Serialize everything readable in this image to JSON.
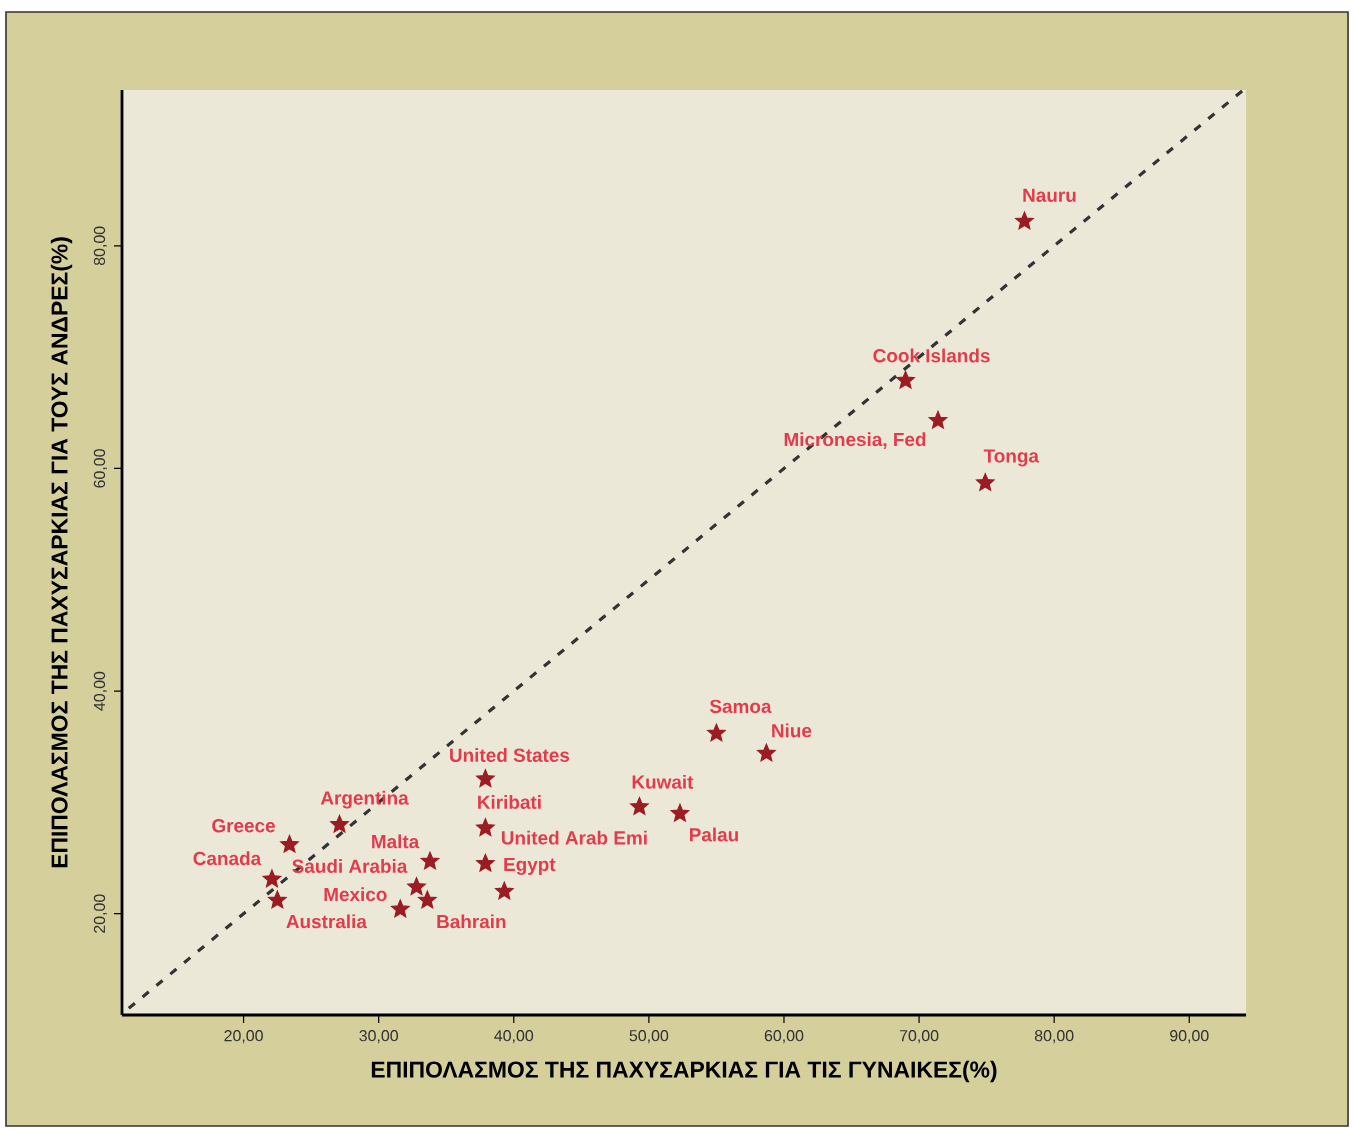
{
  "chart_data": {
    "type": "scatter",
    "xlabel": "ΕΠΙΠΟΛΑΣΜΟΣ ΤΗΣ ΠΑΧΥΣΑΡΚΙΑΣ ΓΙΑ ΤΙΣ ΓΥΝΑΙΚΕΣ(%)",
    "ylabel": "ΕΠΙΠΟΛΑΣΜΟΣ ΤΗΣ ΠΑΧΥΣΑΡΚΙΑΣ ΓΙΑ ΤΟΥΣ ΑΝΔΡΕΣ(%)",
    "xlim": [
      11,
      94.2
    ],
    "ylim": [
      10.9,
      94
    ],
    "xticks": [
      {
        "value": 20,
        "label": "20,00"
      },
      {
        "value": 30,
        "label": "30,00"
      },
      {
        "value": 40,
        "label": "40,00"
      },
      {
        "value": 50,
        "label": "50,00"
      },
      {
        "value": 60,
        "label": "60,00"
      },
      {
        "value": 70,
        "label": "70,00"
      },
      {
        "value": 80,
        "label": "80,00"
      },
      {
        "value": 90,
        "label": "90,00"
      }
    ],
    "yticks": [
      {
        "value": 20,
        "label": "20,00"
      },
      {
        "value": 40,
        "label": "40,00"
      },
      {
        "value": 60,
        "label": "60,00"
      },
      {
        "value": 80,
        "label": "80,00"
      }
    ],
    "series": [
      {
        "marker": "star",
        "color": "#9b1c22",
        "x": [
          77.8,
          69.0,
          71.4,
          74.9,
          55.0,
          58.7,
          37.9,
          49.3,
          52.3,
          37.9,
          37.9,
          39.3,
          27.1,
          23.4,
          22.1,
          22.5,
          33.8,
          32.8,
          31.6,
          33.6
        ],
        "values": [
          82.2,
          67.9,
          64.3,
          58.7,
          36.2,
          34.4,
          32.1,
          29.6,
          29.0,
          27.7,
          24.5,
          22.0,
          28.0,
          26.2,
          23.1,
          21.2,
          24.7,
          22.4,
          20.4,
          21.2
        ]
      },
      {
        "type": "line",
        "line_style": "dashed",
        "color": "#333333",
        "x": [
          11.5,
          94
        ],
        "values": [
          11.5,
          94
        ]
      }
    ],
    "annotations": [
      {
        "text": "Nauru",
        "x": 77.8,
        "y": 82.2
      },
      {
        "text": "Cook Islands",
        "x": 69.0,
        "y": 67.9
      },
      {
        "text": "Micronesia, Fed",
        "x": 71.4,
        "y": 64.3
      },
      {
        "text": "Tonga",
        "x": 74.9,
        "y": 58.7
      },
      {
        "text": "Samoa",
        "x": 55.0,
        "y": 36.2
      },
      {
        "text": "Niue",
        "x": 58.7,
        "y": 34.4
      },
      {
        "text": "United States",
        "x": 37.9,
        "y": 32.1
      },
      {
        "text": "Kuwait",
        "x": 49.3,
        "y": 29.6
      },
      {
        "text": "Palau",
        "x": 52.3,
        "y": 29.0
      },
      {
        "text": "Kiribati",
        "x": 37.9,
        "y": 27.7
      },
      {
        "text": "United Arab Emi",
        "x": 37.9,
        "y": 24.5
      },
      {
        "text": "Egypt",
        "x": 39.3,
        "y": 22.0
      },
      {
        "text": "Argentina",
        "x": 27.1,
        "y": 28.0
      },
      {
        "text": "Greece",
        "x": 23.4,
        "y": 26.2
      },
      {
        "text": "Canada",
        "x": 22.1,
        "y": 23.1
      },
      {
        "text": "Australia",
        "x": 22.5,
        "y": 21.2
      },
      {
        "text": "Malta",
        "x": 33.8,
        "y": 24.7
      },
      {
        "text": "Saudi Arabia",
        "x": 32.8,
        "y": 22.4
      },
      {
        "text": "Mexico",
        "x": 31.6,
        "y": 20.4
      },
      {
        "text": "Bahrain",
        "x": 33.6,
        "y": 21.2
      }
    ]
  }
}
